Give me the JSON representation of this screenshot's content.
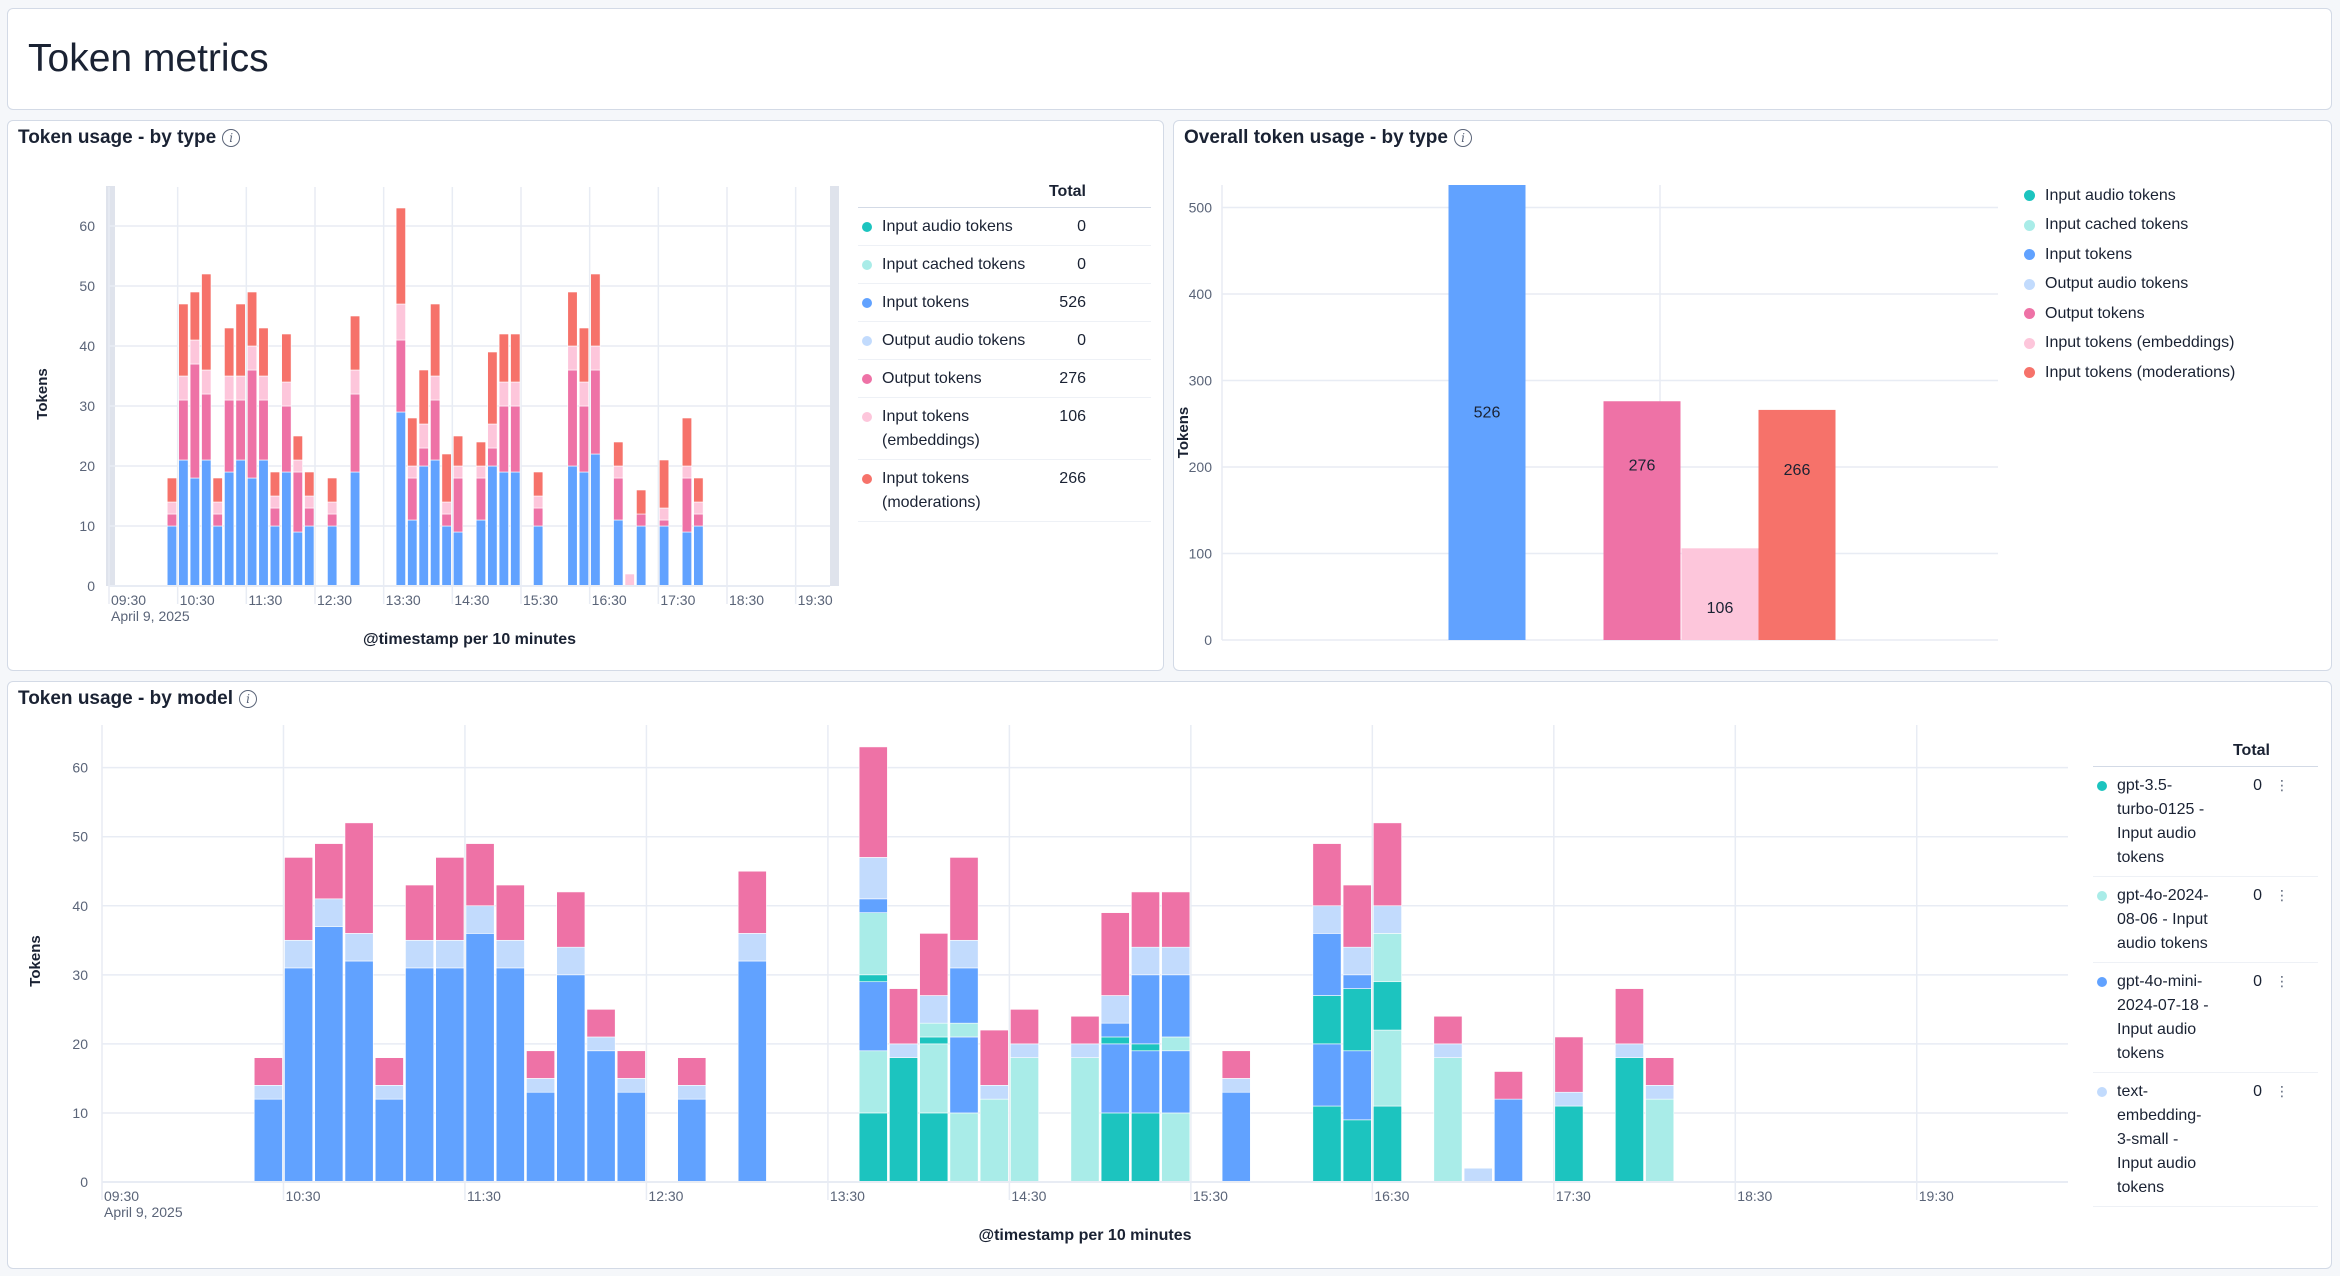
{
  "page": {
    "title": "Token metrics"
  },
  "colors": {
    "input_audio": "#1cc4bf",
    "input_cached": "#a9ece8",
    "input": "#61a2ff",
    "output_audio": "#c2dbfd",
    "output": "#ee72a6",
    "input_embeddings": "#fdc6db",
    "input_moderations": "#f6726a",
    "grid": "#e8ecf4",
    "axis_text": "#5a6478"
  },
  "panels": {
    "by_type": {
      "title": "Token usage - by type",
      "legend_header": "Total",
      "legend": [
        {
          "label": "Input audio tokens",
          "total": "0",
          "color_key": "input_audio"
        },
        {
          "label": "Input cached tokens",
          "total": "0",
          "color_key": "input_cached"
        },
        {
          "label": "Input tokens",
          "total": "526",
          "color_key": "input"
        },
        {
          "label": "Output audio tokens",
          "total": "0",
          "color_key": "output_audio"
        },
        {
          "label": "Output tokens",
          "total": "276",
          "color_key": "output"
        },
        {
          "label": "Input tokens (embeddings)",
          "total": "106",
          "color_key": "input_embeddings"
        },
        {
          "label": "Input tokens (moderations)",
          "total": "266",
          "color_key": "input_moderations"
        }
      ]
    },
    "overall": {
      "title": "Overall token usage - by type",
      "legend": [
        {
          "label": "Input audio tokens",
          "color_key": "input_audio"
        },
        {
          "label": "Input cached tokens",
          "color_key": "input_cached"
        },
        {
          "label": "Input tokens",
          "color_key": "input"
        },
        {
          "label": "Output audio tokens",
          "color_key": "output_audio"
        },
        {
          "label": "Output tokens",
          "color_key": "output"
        },
        {
          "label": "Input tokens (embeddings)",
          "color_key": "input_embeddings"
        },
        {
          "label": "Input tokens (moderations)",
          "color_key": "input_moderations"
        }
      ]
    },
    "by_model": {
      "title": "Token usage - by model",
      "legend_header": "Total",
      "legend": [
        {
          "label": "gpt-3.5-turbo-0125 - Input audio tokens",
          "total": "0",
          "color_key": "input_audio"
        },
        {
          "label": "gpt-4o-2024-08-06 - Input audio tokens",
          "total": "0",
          "color_key": "input_cached"
        },
        {
          "label": "gpt-4o-mini-2024-07-18 - Input audio tokens",
          "total": "0",
          "color_key": "input"
        },
        {
          "label": "text-embedding-3-small - Input audio tokens",
          "total": "0",
          "color_key": "output_audio"
        }
      ]
    }
  },
  "chart_data": [
    {
      "id": "by_type",
      "type": "bar",
      "stacked": true,
      "title": "Token usage - by type",
      "xlabel": "@timestamp per 10 minutes",
      "ylabel": "Tokens",
      "x_date_label": "April 9, 2025",
      "x_ticks": [
        "09:30",
        "10:30",
        "11:30",
        "12:30",
        "13:30",
        "14:30",
        "15:30",
        "16:30",
        "17:30",
        "18:30",
        "19:30"
      ],
      "y_ticks": [
        0,
        10,
        20,
        30,
        40,
        50,
        60
      ],
      "ylim": [
        0,
        64
      ],
      "x_range": [
        "09:30",
        "20:00"
      ],
      "grid": true,
      "categories": [
        "10:20",
        "10:30",
        "10:40",
        "10:50",
        "11:00",
        "11:10",
        "11:20",
        "11:30",
        "11:40",
        "11:50",
        "12:00",
        "12:10",
        "12:20",
        "12:40",
        "13:00",
        "13:40",
        "13:50",
        "14:00",
        "14:10",
        "14:20",
        "14:30",
        "14:50",
        "15:00",
        "15:10",
        "15:20",
        "15:40",
        "16:10",
        "16:20",
        "16:30",
        "16:50",
        "17:00",
        "17:10",
        "17:30",
        "17:50",
        "18:00"
      ],
      "series": [
        {
          "name": "Input tokens",
          "color_key": "input",
          "values": [
            10,
            21,
            18,
            21,
            10,
            19,
            21,
            18,
            21,
            10,
            19,
            9,
            10,
            10,
            19,
            29,
            11,
            20,
            21,
            10,
            9,
            11,
            20,
            19,
            19,
            10,
            20,
            19,
            22,
            11,
            0,
            10,
            10,
            9,
            10
          ]
        },
        {
          "name": "Output tokens",
          "color_key": "output",
          "values": [
            2,
            10,
            19,
            11,
            2,
            12,
            10,
            18,
            10,
            3,
            11,
            10,
            3,
            2,
            13,
            12,
            7,
            3,
            10,
            2,
            9,
            7,
            3,
            11,
            11,
            3,
            16,
            11,
            14,
            7,
            0,
            2,
            1,
            9,
            2
          ]
        },
        {
          "name": "Input tokens (embeddings)",
          "color_key": "input_embeddings",
          "values": [
            2,
            4,
            4,
            4,
            2,
            4,
            4,
            4,
            4,
            2,
            4,
            2,
            2,
            2,
            4,
            6,
            2,
            4,
            4,
            2,
            2,
            2,
            4,
            4,
            4,
            2,
            4,
            4,
            4,
            2,
            2,
            0,
            2,
            2,
            2
          ]
        },
        {
          "name": "Input tokens (moderations)",
          "color_key": "input_moderations",
          "values": [
            4,
            12,
            8,
            16,
            4,
            8,
            12,
            9,
            8,
            4,
            8,
            4,
            4,
            4,
            9,
            16,
            8,
            9,
            12,
            8,
            5,
            4,
            12,
            8,
            8,
            4,
            9,
            9,
            12,
            4,
            0,
            4,
            8,
            8,
            4
          ]
        }
      ]
    },
    {
      "id": "overall",
      "type": "bar",
      "title": "Overall token usage - by type",
      "ylabel": "Tokens",
      "y_ticks": [
        0,
        100,
        200,
        300,
        400,
        500
      ],
      "ylim": [
        0,
        526
      ],
      "grid": true,
      "legend_position": "right",
      "categories": [
        "Input tokens",
        "Output tokens",
        "Input tokens (embeddings)",
        "Input tokens (moderations)"
      ],
      "values": [
        526,
        276,
        106,
        266
      ],
      "data_labels": [
        "526",
        "276",
        "106",
        "266"
      ],
      "color_keys": [
        "input",
        "output",
        "input_embeddings",
        "input_moderations"
      ]
    },
    {
      "id": "by_model",
      "type": "bar",
      "stacked": true,
      "title": "Token usage - by model",
      "xlabel": "@timestamp per 10 minutes",
      "ylabel": "Tokens",
      "x_date_label": "April 9, 2025",
      "x_ticks": [
        "09:30",
        "10:30",
        "11:30",
        "12:30",
        "13:30",
        "14:30",
        "15:30",
        "16:30",
        "17:30",
        "18:30",
        "19:30"
      ],
      "y_ticks": [
        0,
        10,
        20,
        30,
        40,
        50,
        60
      ],
      "ylim": [
        0,
        64
      ],
      "grid": true,
      "legend_position": "right",
      "categories": [
        "10:20",
        "10:30",
        "10:40",
        "10:50",
        "11:00",
        "11:10",
        "11:20",
        "11:30",
        "11:40",
        "11:50",
        "12:00",
        "12:10",
        "12:20",
        "12:40",
        "13:00",
        "13:40",
        "13:50",
        "14:00",
        "14:10",
        "14:20",
        "14:30",
        "14:50",
        "15:00",
        "15:10",
        "15:20",
        "15:40",
        "16:10",
        "16:20",
        "16:30",
        "16:50",
        "17:00",
        "17:10",
        "17:30",
        "17:50",
        "18:00"
      ],
      "stacks": [
        [
          [
            "input",
            12
          ],
          [
            "output_audio",
            2
          ],
          [
            "output",
            4
          ]
        ],
        [
          [
            "input",
            31
          ],
          [
            "output_audio",
            4
          ],
          [
            "output",
            12
          ]
        ],
        [
          [
            "input",
            37
          ],
          [
            "output_audio",
            4
          ],
          [
            "output",
            8
          ]
        ],
        [
          [
            "input",
            32
          ],
          [
            "output_audio",
            4
          ],
          [
            "output",
            16
          ]
        ],
        [
          [
            "input",
            12
          ],
          [
            "output_audio",
            2
          ],
          [
            "output",
            4
          ]
        ],
        [
          [
            "input",
            31
          ],
          [
            "output_audio",
            4
          ],
          [
            "output",
            8
          ]
        ],
        [
          [
            "input",
            31
          ],
          [
            "output_audio",
            4
          ],
          [
            "output",
            12
          ]
        ],
        [
          [
            "input",
            36
          ],
          [
            "output_audio",
            4
          ],
          [
            "output",
            9
          ]
        ],
        [
          [
            "input",
            31
          ],
          [
            "output_audio",
            4
          ],
          [
            "output",
            8
          ]
        ],
        [
          [
            "input",
            13
          ],
          [
            "output_audio",
            2
          ],
          [
            "output",
            4
          ]
        ],
        [
          [
            "input",
            30
          ],
          [
            "output_audio",
            4
          ],
          [
            "output",
            8
          ]
        ],
        [
          [
            "input",
            19
          ],
          [
            "output_audio",
            2
          ],
          [
            "output",
            4
          ]
        ],
        [
          [
            "input",
            13
          ],
          [
            "output_audio",
            2
          ],
          [
            "output",
            4
          ]
        ],
        [
          [
            "input",
            12
          ],
          [
            "output_audio",
            2
          ],
          [
            "output",
            4
          ]
        ],
        [
          [
            "input",
            32
          ],
          [
            "output_audio",
            4
          ],
          [
            "output",
            9
          ]
        ],
        [
          [
            "input_audio",
            10
          ],
          [
            "input_cached",
            9
          ],
          [
            "input",
            10
          ],
          [
            "input_audio",
            1
          ],
          [
            "input_cached",
            9
          ],
          [
            "input",
            2
          ],
          [
            "output_audio",
            6
          ],
          [
            "output",
            16
          ]
        ],
        [
          [
            "input_audio",
            18
          ],
          [
            "output_audio",
            2
          ],
          [
            "output",
            8
          ]
        ],
        [
          [
            "input_audio",
            10
          ],
          [
            "input_cached",
            10
          ],
          [
            "input_audio",
            1
          ],
          [
            "input_cached",
            2
          ],
          [
            "output_audio",
            4
          ],
          [
            "output",
            9
          ]
        ],
        [
          [
            "input_cached",
            10
          ],
          [
            "input",
            11
          ],
          [
            "input_cached",
            2
          ],
          [
            "input",
            8
          ],
          [
            "output_audio",
            4
          ],
          [
            "output",
            12
          ]
        ],
        [
          [
            "input_cached",
            12
          ],
          [
            "output_audio",
            2
          ],
          [
            "output",
            8
          ]
        ],
        [
          [
            "input_cached",
            18
          ],
          [
            "output_audio",
            2
          ],
          [
            "output",
            5
          ]
        ],
        [
          [
            "input_cached",
            18
          ],
          [
            "output_audio",
            2
          ],
          [
            "output",
            4
          ]
        ],
        [
          [
            "input_audio",
            10
          ],
          [
            "input",
            10
          ],
          [
            "input_audio",
            1
          ],
          [
            "input",
            2
          ],
          [
            "output_audio",
            4
          ],
          [
            "output",
            12
          ]
        ],
        [
          [
            "input_audio",
            10
          ],
          [
            "input",
            9
          ],
          [
            "input_audio",
            1
          ],
          [
            "input",
            10
          ],
          [
            "output_audio",
            4
          ],
          [
            "output",
            8
          ]
        ],
        [
          [
            "input_cached",
            10
          ],
          [
            "input",
            9
          ],
          [
            "input_cached",
            2
          ],
          [
            "input",
            9
          ],
          [
            "output_audio",
            4
          ],
          [
            "output",
            8
          ]
        ],
        [
          [
            "input",
            13
          ],
          [
            "output_audio",
            2
          ],
          [
            "output",
            4
          ]
        ],
        [
          [
            "input_audio",
            11
          ],
          [
            "input",
            9
          ],
          [
            "input_audio",
            7
          ],
          [
            "input",
            9
          ],
          [
            "output_audio",
            4
          ],
          [
            "output",
            9
          ]
        ],
        [
          [
            "input_audio",
            9
          ],
          [
            "input",
            10
          ],
          [
            "input_audio",
            9
          ],
          [
            "input",
            2
          ],
          [
            "output_audio",
            4
          ],
          [
            "output",
            9
          ]
        ],
        [
          [
            "input_audio",
            11
          ],
          [
            "input_cached",
            11
          ],
          [
            "input_audio",
            7
          ],
          [
            "input_cached",
            7
          ],
          [
            "output_audio",
            4
          ],
          [
            "output",
            12
          ]
        ],
        [
          [
            "input_cached",
            18
          ],
          [
            "output_audio",
            2
          ],
          [
            "output",
            4
          ]
        ],
        [
          [
            "output_audio",
            2
          ]
        ],
        [
          [
            "input",
            12
          ],
          [
            "output",
            4
          ]
        ],
        [
          [
            "input_audio",
            11
          ],
          [
            "output_audio",
            2
          ],
          [
            "output",
            8
          ]
        ],
        [
          [
            "input_audio",
            18
          ],
          [
            "output_audio",
            2
          ],
          [
            "output",
            8
          ]
        ],
        [
          [
            "input_cached",
            12
          ],
          [
            "output_audio",
            2
          ],
          [
            "output",
            4
          ]
        ]
      ]
    }
  ]
}
